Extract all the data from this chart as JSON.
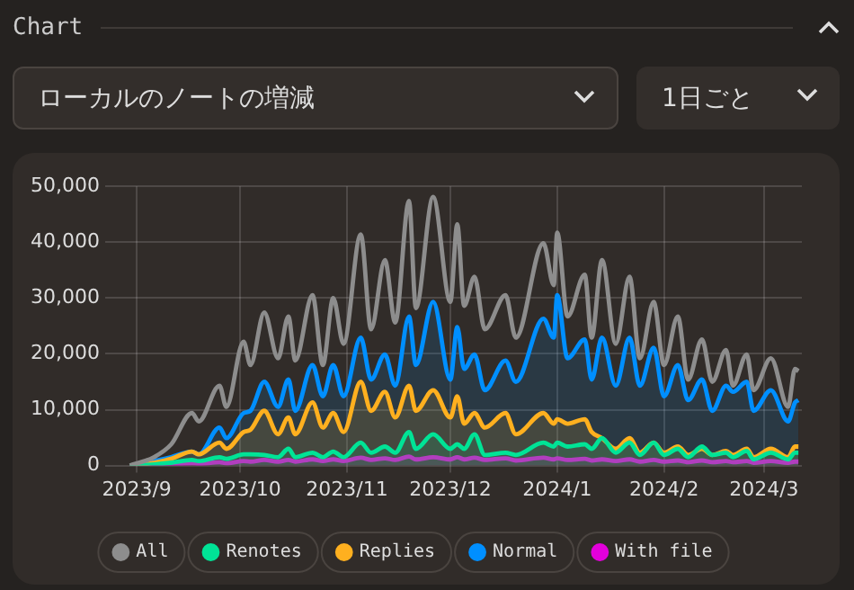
{
  "chart_data": {
    "type": "line",
    "title": "Chart",
    "subtitle": "ローカルのノートの増減",
    "annotations": [
      "1日ごと"
    ],
    "x": [
      "2023-08-30",
      "2023-09-06",
      "2023-09-11",
      "2023-09-17",
      "2023-09-19",
      "2023-09-25",
      "2023-09-27",
      "2023-10-02",
      "2023-10-04",
      "2023-10-08",
      "2023-10-12",
      "2023-10-15",
      "2023-10-17",
      "2023-10-22",
      "2023-10-25",
      "2023-10-28",
      "2023-10-31",
      "2023-11-05",
      "2023-11-08",
      "2023-11-12",
      "2023-11-15",
      "2023-11-19",
      "2023-11-21",
      "2023-11-26",
      "2023-12-01",
      "2023-12-03",
      "2023-12-05",
      "2023-12-08",
      "2023-12-11",
      "2023-12-17",
      "2023-12-20",
      "2023-12-28",
      "2023-12-31",
      "2024-01-01",
      "2024-01-04",
      "2024-01-09",
      "2024-01-11",
      "2024-01-14",
      "2024-01-18",
      "2024-01-22",
      "2024-01-25",
      "2024-01-29",
      "2024-02-01",
      "2024-02-05",
      "2024-02-08",
      "2024-02-12",
      "2024-02-15",
      "2024-02-19",
      "2024-02-21",
      "2024-02-25",
      "2024-02-27",
      "2024-03-03",
      "2024-03-08",
      "2024-03-10",
      "2024-03-11"
    ],
    "series": [
      {
        "name": "All",
        "color": "#8d8d8d",
        "values": [
          0,
          1500,
          3800,
          9400,
          7900,
          14300,
          10500,
          22200,
          18000,
          27400,
          19200,
          26700,
          18800,
          30500,
          18000,
          30000,
          21800,
          41400,
          24400,
          36800,
          25600,
          47400,
          28200,
          48100,
          29300,
          43200,
          28600,
          33800,
          24400,
          30500,
          22900,
          39800,
          32300,
          41700,
          26700,
          34200,
          22900,
          36800,
          21800,
          33800,
          19200,
          29300,
          18000,
          26700,
          15400,
          22600,
          15000,
          20700,
          14300,
          19900,
          13500,
          19200,
          10500,
          17300,
          16900
        ]
      },
      {
        "name": "Renotes",
        "type": "area",
        "color": "#00e396",
        "values": [
          0,
          200,
          500,
          1000,
          800,
          1500,
          1200,
          2000,
          2000,
          1900,
          1500,
          3000,
          1500,
          2300,
          1500,
          2500,
          1500,
          4100,
          2300,
          3400,
          2300,
          6000,
          3000,
          5600,
          3000,
          3800,
          3000,
          5600,
          1900,
          2300,
          1900,
          4100,
          3400,
          4100,
          3400,
          3800,
          3000,
          4900,
          2300,
          4100,
          1900,
          4100,
          1900,
          3000,
          1500,
          3400,
          1900,
          2300,
          1500,
          2600,
          1100,
          2300,
          1100,
          2300,
          2300
        ]
      },
      {
        "name": "Replies",
        "type": "area",
        "color": "#ffb01f",
        "values": [
          0,
          500,
          1200,
          2500,
          2000,
          4100,
          3000,
          6000,
          6400,
          9800,
          5600,
          8600,
          5600,
          11300,
          6800,
          9400,
          6000,
          15000,
          9800,
          13200,
          8600,
          14300,
          9800,
          13500,
          8600,
          12400,
          7500,
          9400,
          6800,
          9400,
          5600,
          9400,
          7500,
          8300,
          7500,
          8300,
          6000,
          4900,
          3000,
          4900,
          2300,
          4100,
          2300,
          3400,
          1900,
          3000,
          1900,
          2600,
          1900,
          3000,
          1500,
          3000,
          1500,
          3400,
          3400
        ]
      },
      {
        "name": "Normal",
        "type": "area",
        "color": "#008fff",
        "values": [
          0,
          800,
          1500,
          2500,
          2000,
          6800,
          4900,
          9400,
          9800,
          15000,
          10500,
          15400,
          9800,
          18000,
          12400,
          18000,
          12400,
          22900,
          15400,
          19900,
          14300,
          26700,
          18000,
          29300,
          15400,
          24800,
          17300,
          19900,
          13500,
          18800,
          15000,
          26300,
          22900,
          30500,
          19200,
          22600,
          15400,
          22900,
          14300,
          22900,
          14300,
          21100,
          12400,
          18000,
          11700,
          15400,
          9800,
          14300,
          13200,
          15000,
          9800,
          13500,
          7900,
          11300,
          11700
        ]
      },
      {
        "name": "With file",
        "type": "area",
        "color": "#e300db",
        "values": [
          0,
          100,
          200,
          400,
          300,
          600,
          400,
          800,
          700,
          1000,
          700,
          1000,
          700,
          1100,
          800,
          1100,
          800,
          1400,
          1000,
          1300,
          1000,
          1600,
          1100,
          1500,
          1100,
          1500,
          1100,
          1400,
          1000,
          1300,
          900,
          1400,
          1100,
          1300,
          1000,
          1200,
          900,
          1100,
          800,
          1100,
          700,
          1000,
          700,
          900,
          600,
          900,
          600,
          800,
          600,
          800,
          500,
          800,
          500,
          700,
          700
        ]
      }
    ],
    "xlim": [
      "2023-08-27",
      "2024-03-12"
    ],
    "xticks": [
      {
        "value": "2023-09-01",
        "label": "2023/9"
      },
      {
        "value": "2023-10-01",
        "label": "2023/10"
      },
      {
        "value": "2023-11-01",
        "label": "2023/11"
      },
      {
        "value": "2023-12-01",
        "label": "2023/12"
      },
      {
        "value": "2024-01-01",
        "label": "2024/1"
      },
      {
        "value": "2024-02-01",
        "label": "2024/2"
      },
      {
        "value": "2024-03-01",
        "label": "2024/3"
      }
    ],
    "ylim": [
      0,
      50000
    ],
    "yticks": [
      0,
      {
        "value": 10000,
        "label": "10,000"
      },
      {
        "value": 20000,
        "label": "20,000"
      },
      {
        "value": 30000,
        "label": "30,000"
      },
      {
        "value": 40000,
        "label": "40,000"
      },
      {
        "value": 50000,
        "label": "50,000"
      }
    ],
    "grid": true,
    "legend": "bottom",
    "marker": "none",
    "line_style": "solid"
  }
}
